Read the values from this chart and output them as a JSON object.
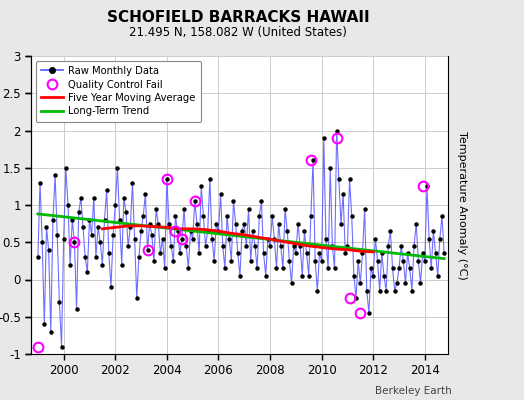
{
  "title": "SCHOFIELD BARRACKS HAWAII",
  "subtitle": "21.495 N, 158.082 W (United States)",
  "right_ylabel": "Temperature Anomaly (°C)",
  "footer": "Berkeley Earth",
  "xlim": [
    1998.75,
    2014.9
  ],
  "ylim": [
    -1.0,
    3.0
  ],
  "yticks": [
    -1,
    -0.5,
    0,
    0.5,
    1,
    1.5,
    2,
    2.5,
    3
  ],
  "xticks": [
    2000,
    2002,
    2004,
    2006,
    2008,
    2010,
    2012,
    2014
  ],
  "bg_color": "#e8e8e8",
  "plot_bg": "#ffffff",
  "grid_color": "#cccccc",
  "raw_line_color": "#5555ff",
  "raw_marker_color": "#000000",
  "ma_color": "#ff0000",
  "trend_color": "#00bb00",
  "qc_color": "#ff00ff",
  "raw_data_times": [
    1999.0,
    1999.083,
    1999.167,
    1999.25,
    1999.333,
    1999.417,
    1999.5,
    1999.583,
    1999.667,
    1999.75,
    1999.833,
    1999.917,
    2000.0,
    2000.083,
    2000.167,
    2000.25,
    2000.333,
    2000.417,
    2000.5,
    2000.583,
    2000.667,
    2000.75,
    2000.833,
    2000.917,
    2001.0,
    2001.083,
    2001.167,
    2001.25,
    2001.333,
    2001.417,
    2001.5,
    2001.583,
    2001.667,
    2001.75,
    2001.833,
    2001.917,
    2002.0,
    2002.083,
    2002.167,
    2002.25,
    2002.333,
    2002.417,
    2002.5,
    2002.583,
    2002.667,
    2002.75,
    2002.833,
    2002.917,
    2003.0,
    2003.083,
    2003.167,
    2003.25,
    2003.333,
    2003.417,
    2003.5,
    2003.583,
    2003.667,
    2003.75,
    2003.833,
    2003.917,
    2004.0,
    2004.083,
    2004.167,
    2004.25,
    2004.333,
    2004.417,
    2004.5,
    2004.583,
    2004.667,
    2004.75,
    2004.833,
    2004.917,
    2005.0,
    2005.083,
    2005.167,
    2005.25,
    2005.333,
    2005.417,
    2005.5,
    2005.583,
    2005.667,
    2005.75,
    2005.833,
    2005.917,
    2006.0,
    2006.083,
    2006.167,
    2006.25,
    2006.333,
    2006.417,
    2006.5,
    2006.583,
    2006.667,
    2006.75,
    2006.833,
    2006.917,
    2007.0,
    2007.083,
    2007.167,
    2007.25,
    2007.333,
    2007.417,
    2007.5,
    2007.583,
    2007.667,
    2007.75,
    2007.833,
    2007.917,
    2008.0,
    2008.083,
    2008.167,
    2008.25,
    2008.333,
    2008.417,
    2008.5,
    2008.583,
    2008.667,
    2008.75,
    2008.833,
    2008.917,
    2009.0,
    2009.083,
    2009.167,
    2009.25,
    2009.333,
    2009.417,
    2009.5,
    2009.583,
    2009.667,
    2009.75,
    2009.833,
    2009.917,
    2010.0,
    2010.083,
    2010.167,
    2010.25,
    2010.333,
    2010.417,
    2010.5,
    2010.583,
    2010.667,
    2010.75,
    2010.833,
    2010.917,
    2011.0,
    2011.083,
    2011.167,
    2011.25,
    2011.333,
    2011.417,
    2011.5,
    2011.583,
    2011.667,
    2011.75,
    2011.833,
    2011.917,
    2012.0,
    2012.083,
    2012.167,
    2012.25,
    2012.333,
    2012.417,
    2012.5,
    2012.583,
    2012.667,
    2012.75,
    2012.833,
    2012.917,
    2013.0,
    2013.083,
    2013.167,
    2013.25,
    2013.333,
    2013.417,
    2013.5,
    2013.583,
    2013.667,
    2013.75,
    2013.833,
    2013.917,
    2014.0,
    2014.083,
    2014.167,
    2014.25,
    2014.333,
    2014.417,
    2014.5,
    2014.583,
    2014.667,
    2014.75
  ],
  "raw_data_values": [
    0.3,
    1.3,
    0.5,
    -0.6,
    0.7,
    0.4,
    -0.7,
    0.8,
    1.4,
    0.6,
    -0.3,
    -0.9,
    0.55,
    1.5,
    1.0,
    0.2,
    0.8,
    0.5,
    -0.4,
    0.9,
    1.1,
    0.7,
    0.3,
    0.1,
    0.8,
    0.6,
    1.1,
    0.3,
    0.7,
    0.5,
    0.2,
    0.8,
    1.2,
    0.35,
    -0.1,
    0.6,
    1.0,
    1.5,
    0.8,
    0.2,
    1.1,
    0.9,
    0.45,
    0.7,
    1.3,
    0.55,
    -0.25,
    0.3,
    0.65,
    0.85,
    1.15,
    0.4,
    0.75,
    0.6,
    0.25,
    0.95,
    0.75,
    0.35,
    0.55,
    0.15,
    1.35,
    0.75,
    0.45,
    0.25,
    0.85,
    0.65,
    0.35,
    0.55,
    0.95,
    0.45,
    0.15,
    0.65,
    0.55,
    1.05,
    0.75,
    0.35,
    1.25,
    0.85,
    0.45,
    0.65,
    1.35,
    0.55,
    0.25,
    0.75,
    0.65,
    1.15,
    0.45,
    0.15,
    0.85,
    0.55,
    0.25,
    1.05,
    0.75,
    0.35,
    0.05,
    0.65,
    0.75,
    0.45,
    0.95,
    0.25,
    0.65,
    0.45,
    0.15,
    0.85,
    1.05,
    0.35,
    0.05,
    0.55,
    0.45,
    0.85,
    0.55,
    0.15,
    0.75,
    0.45,
    0.15,
    0.95,
    0.65,
    0.25,
    -0.05,
    0.45,
    0.35,
    0.75,
    0.45,
    0.05,
    0.65,
    0.35,
    0.05,
    0.85,
    1.6,
    0.25,
    -0.15,
    0.35,
    0.25,
    1.9,
    0.55,
    0.15,
    1.5,
    0.45,
    0.15,
    2.0,
    1.35,
    0.75,
    1.15,
    0.35,
    0.45,
    1.35,
    0.85,
    0.05,
    -0.25,
    0.25,
    -0.05,
    0.35,
    0.95,
    -0.15,
    -0.45,
    0.15,
    0.05,
    0.55,
    0.25,
    -0.15,
    0.35,
    0.05,
    -0.15,
    0.45,
    0.65,
    0.15,
    -0.15,
    -0.05,
    0.15,
    0.45,
    0.25,
    -0.05,
    0.35,
    0.15,
    -0.15,
    0.45,
    0.75,
    0.25,
    -0.05,
    0.35,
    0.25,
    1.25,
    0.55,
    0.15,
    0.65,
    0.35,
    0.05,
    0.55,
    0.85,
    0.35
  ],
  "qc_fail_times": [
    1999.0,
    2000.417,
    2003.25,
    2004.0,
    2004.333,
    2004.583,
    2005.083,
    2009.583,
    2010.583,
    2011.083,
    2011.5,
    2013.917
  ],
  "qc_fail_values": [
    -0.9,
    0.5,
    0.4,
    1.35,
    0.65,
    0.55,
    1.05,
    1.6,
    1.9,
    -0.25,
    -0.45,
    1.25
  ],
  "ma_times": [
    2001.5,
    2002.0,
    2002.5,
    2003.0,
    2003.5,
    2004.0,
    2004.5,
    2005.0,
    2005.5,
    2006.0,
    2006.5,
    2007.0,
    2007.5,
    2008.0,
    2008.5,
    2009.0,
    2009.5,
    2010.0,
    2010.5,
    2011.0,
    2011.5,
    2012.0
  ],
  "ma_values": [
    0.68,
    0.7,
    0.72,
    0.72,
    0.71,
    0.7,
    0.68,
    0.68,
    0.67,
    0.65,
    0.62,
    0.6,
    0.57,
    0.54,
    0.51,
    0.48,
    0.45,
    0.43,
    0.41,
    0.4,
    0.38,
    0.37
  ],
  "trend_times": [
    1999.0,
    2014.75
  ],
  "trend_values": [
    0.88,
    0.28
  ]
}
